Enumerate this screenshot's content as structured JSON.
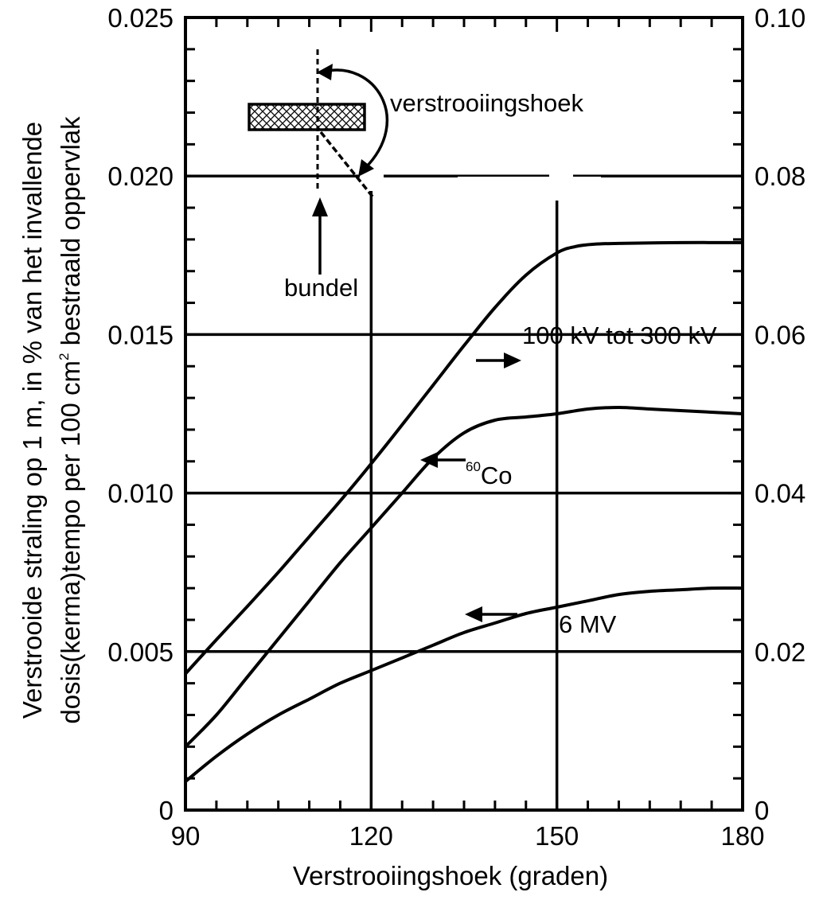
{
  "chart_data": {
    "type": "line",
    "title": "",
    "xlabel": "Verstrooiingshoek (graden)",
    "ylabel_line1": "Verstrooide straling op 1 m, in % van het invallende",
    "ylabel_line2_prefix": "dosis(kerma)tempo per 100 cm",
    "ylabel_line2_sup": "2",
    "ylabel_line2_suffix": " bestraald oppervlak",
    "xlim": [
      90,
      180
    ],
    "ylim_left": [
      0,
      0.025
    ],
    "ylim_right": [
      0,
      0.1
    ],
    "x_ticks": [
      "90",
      "120",
      "150",
      "180"
    ],
    "x_tick_values": [
      90,
      120,
      150,
      180
    ],
    "y_ticks_left": [
      "0",
      "0.005",
      "0.010",
      "0.015",
      "0.020",
      "0.025"
    ],
    "y_tick_values_left": [
      0,
      0.005,
      0.01,
      0.015,
      0.02,
      0.025
    ],
    "y_ticks_right": [
      "0",
      "0.02",
      "0.04",
      "0.06",
      "0.08",
      "0.10"
    ],
    "y_tick_values_right": [
      0,
      0.02,
      0.04,
      0.06,
      0.08,
      0.1
    ],
    "grid": true,
    "series": [
      {
        "label": "100 kV tot 300 kV",
        "axis": "right",
        "x": [
          90,
          95,
          100,
          105,
          110,
          115,
          120,
          125,
          130,
          135,
          140,
          145,
          150,
          153,
          156,
          160,
          170,
          180
        ],
        "y": [
          0.0172,
          0.0215,
          0.0257,
          0.03,
          0.0345,
          0.039,
          0.0437,
          0.0486,
          0.0536,
          0.0586,
          0.0634,
          0.0675,
          0.0703,
          0.0711,
          0.0714,
          0.0715,
          0.0716,
          0.0716
        ]
      },
      {
        "label_prefix": "",
        "label_sup": "60",
        "label_suffix": "Co",
        "axis": "left",
        "x": [
          90,
          95,
          100,
          105,
          110,
          115,
          120,
          125,
          130,
          135,
          140,
          145,
          150,
          155,
          160,
          165,
          170,
          180
        ],
        "y": [
          0.002,
          0.003,
          0.0042,
          0.0054,
          0.0066,
          0.0078,
          0.0089,
          0.01,
          0.0111,
          0.0119,
          0.0123,
          0.0124,
          0.0125,
          0.01265,
          0.0127,
          0.01265,
          0.0126,
          0.0125
        ]
      },
      {
        "label": "6 MV",
        "axis": "left",
        "x": [
          90,
          95,
          100,
          105,
          110,
          115,
          120,
          125,
          130,
          135,
          140,
          145,
          150,
          155,
          160,
          165,
          170,
          175,
          180
        ],
        "y": [
          0.0009,
          0.0017,
          0.0024,
          0.003,
          0.0035,
          0.004,
          0.0044,
          0.0048,
          0.0052,
          0.0056,
          0.0059,
          0.0062,
          0.0064,
          0.0066,
          0.0068,
          0.0069,
          0.00695,
          0.007,
          0.007
        ]
      }
    ],
    "annotations": {
      "beam_label": "bundel",
      "angle_label": "verstrooiingshoek"
    }
  }
}
